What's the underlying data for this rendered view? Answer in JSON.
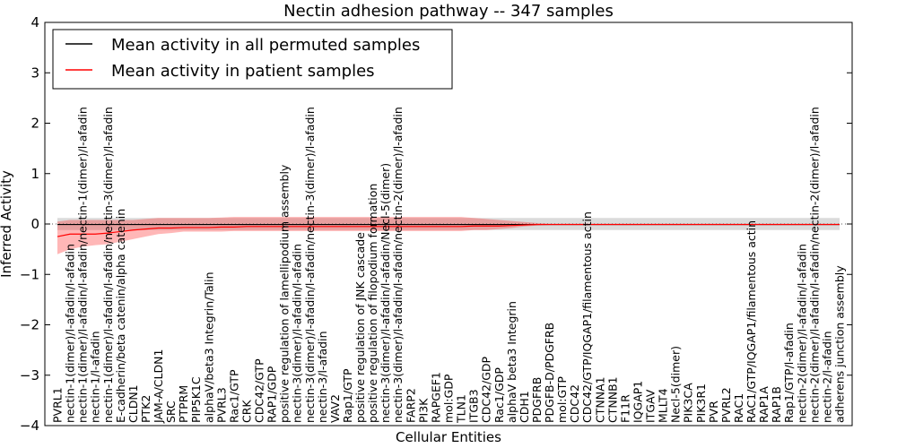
{
  "chart_data": {
    "type": "line",
    "title": "Nectin adhesion pathway -- 347 samples",
    "xlabel": "Cellular Entities",
    "ylabel": "Inferred Activity",
    "ylim": [
      -4,
      4
    ],
    "yticks": [
      -4,
      -3,
      -2,
      -1,
      0,
      1,
      2,
      3,
      4
    ],
    "ytick_labels": [
      "−4",
      "−3",
      "−2",
      "−1",
      "0",
      "1",
      "2",
      "3",
      "4"
    ],
    "legend": {
      "position": "top-left",
      "entries": [
        {
          "label": "Mean activity in all permuted samples",
          "color": "#000000"
        },
        {
          "label": "Mean activity in patient samples",
          "color": "#ff0000"
        }
      ]
    },
    "categories": [
      "PVRL1",
      "nectin-1(dimer)/l-afadin/l-afadin",
      "nectin-1(dimer)/l-afadin/l-afadin/nectin-1(dimer)/l-afadin",
      "nectin-1/l-afadin",
      "nectin-1(dimer)/l-afadin/l-afadin/nectin-3(dimer)/l-afadin",
      "E-cadherin/beta catenin/alpha catenin",
      "CLDN1",
      "PTK2",
      "JAM-A/CLDN1",
      "SRC",
      "PTPRM",
      "PIP5K1C",
      "alphaV/beta3 Integrin/Talin",
      "PVRL3",
      "Rac1/GTP",
      "CRK",
      "CDC42/GTP",
      "RAP1/GDP",
      "positive regulation of lamellipodium assembly",
      "nectin-3(dimer)/l-afadin/l-afadin",
      "nectin-3(dimer)/l-afadin/l-afadin/nectin-3(dimer)/l-afadin",
      "nectin-3/l-afadin",
      "VAV2",
      "Rap1/GTP",
      "positive regulation of JNK cascade",
      "positive regulation of filopodium formation",
      "nectin-3(dimer)/l-afadin/l-afadin/Necl-5(dimer)",
      "nectin-3(dimer)/l-afadin/l-afadin/nectin-2(dimer)/l-afadin",
      "FARP2",
      "PI3K",
      "RAPGEF1",
      "mol:GDP",
      "TLN1",
      "ITGB3",
      "CDC42/GDP",
      "Rac1/GDP",
      "alphaV beta3 Integrin",
      "CDH1",
      "PDGFRB",
      "PDGFB-D/PDGFRB",
      "mol:GTP",
      "CDC42",
      "CDC42/GTP/IQGAP1/filamentous actin",
      "CTNNA1",
      "CTNNB1",
      "F11R",
      "IQGAP1",
      "ITGAV",
      "MLLT4",
      "Necl-5(dimer)",
      "PIK3CA",
      "PIK3R1",
      "PVR",
      "PVRL2",
      "RAC1",
      "RAC1/GTP/IQGAP1/filamentous actin",
      "RAP1A",
      "RAP1B",
      "Rap1/GTP/l-afadin",
      "nectin-2(dimer)/l-afadin/l-afadin",
      "nectin-2(dimer)/l-afadin/l-afadin/nectin-2(dimer)/l-afadin",
      "nectin-2/l-afadin",
      "adherens junction assembly"
    ],
    "label_sides": [
      "down",
      "down",
      "down",
      "down",
      "down",
      "down",
      "down",
      "down",
      "down",
      "down",
      "down",
      "down",
      "down",
      "down",
      "down",
      "down",
      "down",
      "down",
      "down",
      "down",
      "down",
      "down",
      "down",
      "down",
      "down",
      "down",
      "down",
      "down",
      "down",
      "down",
      "down",
      "down",
      "down",
      "down",
      "down",
      "down",
      "down",
      "down",
      "down",
      "down",
      "down",
      "down",
      "down",
      "down",
      "down",
      "down",
      "down",
      "down",
      "down",
      "down",
      "down",
      "down",
      "down",
      "down",
      "down",
      "down",
      "down",
      "down",
      "down",
      "down",
      "down",
      "down",
      "down"
    ],
    "series": [
      {
        "name": "Mean activity in all permuted samples",
        "color": "#000000",
        "values": [
          -0.01,
          -0.01,
          -0.01,
          -0.01,
          -0.01,
          -0.01,
          -0.01,
          -0.01,
          -0.01,
          -0.01,
          -0.01,
          -0.01,
          -0.01,
          -0.01,
          -0.01,
          -0.01,
          -0.01,
          -0.01,
          -0.01,
          -0.01,
          -0.01,
          -0.01,
          -0.01,
          -0.01,
          -0.01,
          -0.01,
          -0.01,
          -0.01,
          -0.01,
          -0.01,
          -0.01,
          -0.01,
          -0.01,
          -0.01,
          -0.01,
          -0.01,
          -0.01,
          -0.01,
          -0.01,
          -0.01,
          -0.01,
          -0.01,
          -0.01,
          -0.01,
          -0.01,
          -0.01,
          -0.01,
          -0.01,
          -0.01,
          -0.01,
          -0.01,
          -0.01,
          -0.01,
          -0.01,
          -0.01,
          -0.01,
          -0.01,
          -0.01,
          -0.01,
          -0.01,
          -0.01,
          -0.01,
          -0.01
        ],
        "lower": [
          -0.12,
          -0.12,
          -0.12,
          -0.12,
          -0.12,
          -0.12,
          -0.12,
          -0.12,
          -0.12,
          -0.12,
          -0.12,
          -0.12,
          -0.12,
          -0.12,
          -0.12,
          -0.12,
          -0.12,
          -0.12,
          -0.12,
          -0.12,
          -0.12,
          -0.12,
          -0.12,
          -0.12,
          -0.12,
          -0.12,
          -0.12,
          -0.12,
          -0.12,
          -0.12,
          -0.12,
          -0.12,
          -0.12,
          -0.12,
          -0.12,
          -0.12,
          -0.12,
          -0.12,
          -0.12,
          -0.12,
          -0.12,
          -0.12,
          -0.12,
          -0.12,
          -0.12,
          -0.12,
          -0.12,
          -0.12,
          -0.12,
          -0.12,
          -0.12,
          -0.12,
          -0.12,
          -0.12,
          -0.12,
          -0.12,
          -0.12,
          -0.12,
          -0.12,
          -0.12,
          -0.12,
          -0.12,
          -0.12
        ],
        "upper": [
          0.12,
          0.12,
          0.12,
          0.12,
          0.12,
          0.12,
          0.12,
          0.12,
          0.12,
          0.12,
          0.12,
          0.12,
          0.12,
          0.12,
          0.12,
          0.12,
          0.12,
          0.12,
          0.12,
          0.12,
          0.12,
          0.12,
          0.12,
          0.12,
          0.12,
          0.12,
          0.12,
          0.12,
          0.12,
          0.12,
          0.12,
          0.12,
          0.12,
          0.12,
          0.12,
          0.12,
          0.12,
          0.12,
          0.12,
          0.12,
          0.12,
          0.12,
          0.12,
          0.12,
          0.12,
          0.12,
          0.12,
          0.12,
          0.12,
          0.12,
          0.12,
          0.12,
          0.12,
          0.12,
          0.12,
          0.12,
          0.12,
          0.12,
          0.12,
          0.12,
          0.12,
          0.12,
          0.12
        ]
      },
      {
        "name": "Mean activity in patient samples",
        "color": "#ff0000",
        "values": [
          -0.25,
          -0.2,
          -0.2,
          -0.2,
          -0.18,
          -0.15,
          -0.12,
          -0.1,
          -0.08,
          -0.08,
          -0.07,
          -0.07,
          -0.07,
          -0.06,
          -0.06,
          -0.05,
          -0.05,
          -0.05,
          -0.05,
          -0.05,
          -0.05,
          -0.05,
          -0.05,
          -0.05,
          -0.05,
          -0.05,
          -0.05,
          -0.05,
          -0.05,
          -0.05,
          -0.05,
          -0.05,
          -0.05,
          -0.04,
          -0.04,
          -0.04,
          -0.03,
          -0.02,
          -0.01,
          -0.01,
          -0.01,
          -0.01,
          -0.01,
          -0.01,
          -0.01,
          -0.01,
          -0.01,
          -0.01,
          -0.01,
          -0.01,
          -0.01,
          -0.01,
          -0.01,
          -0.01,
          -0.01,
          -0.01,
          -0.01,
          -0.01,
          -0.01,
          -0.01,
          -0.01,
          -0.01,
          -0.01
        ],
        "lower": [
          -0.6,
          -0.5,
          -0.45,
          -0.42,
          -0.4,
          -0.35,
          -0.3,
          -0.25,
          -0.2,
          -0.18,
          -0.15,
          -0.15,
          -0.15,
          -0.15,
          -0.14,
          -0.14,
          -0.14,
          -0.14,
          -0.14,
          -0.14,
          -0.14,
          -0.14,
          -0.14,
          -0.14,
          -0.14,
          -0.14,
          -0.14,
          -0.14,
          -0.14,
          -0.14,
          -0.14,
          -0.14,
          -0.14,
          -0.12,
          -0.12,
          -0.1,
          -0.08,
          -0.05,
          -0.03,
          -0.02,
          -0.02,
          -0.02,
          -0.02,
          -0.02,
          -0.02,
          -0.02,
          -0.02,
          -0.02,
          -0.02,
          -0.02,
          -0.02,
          -0.02,
          -0.02,
          -0.02,
          -0.02,
          -0.02,
          -0.02,
          -0.02,
          -0.02,
          -0.02,
          -0.02,
          -0.02,
          -0.02
        ],
        "upper": [
          0.05,
          0.08,
          0.08,
          0.08,
          0.08,
          0.08,
          0.08,
          0.1,
          0.12,
          0.12,
          0.12,
          0.12,
          0.12,
          0.13,
          0.14,
          0.14,
          0.14,
          0.14,
          0.14,
          0.14,
          0.14,
          0.14,
          0.14,
          0.14,
          0.14,
          0.14,
          0.14,
          0.14,
          0.14,
          0.14,
          0.14,
          0.14,
          0.14,
          0.12,
          0.1,
          0.08,
          0.06,
          0.04,
          0.02,
          0.01,
          0.01,
          0.01,
          0.01,
          0.01,
          0.01,
          0.01,
          0.01,
          0.01,
          0.01,
          0.01,
          0.01,
          0.01,
          0.01,
          0.01,
          0.01,
          0.01,
          0.01,
          0.01,
          0.01,
          0.01,
          0.01,
          0.01,
          0.01
        ]
      }
    ]
  }
}
